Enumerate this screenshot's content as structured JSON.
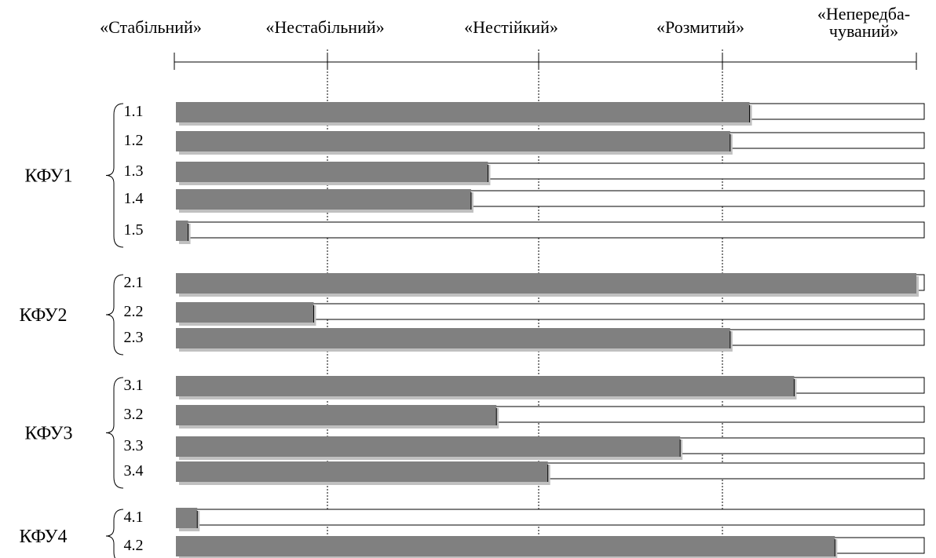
{
  "chart_data": {
    "type": "bar",
    "orientation": "horizontal",
    "stacked_with_remainder": true,
    "scale_labels": [
      [
        "«Стабільний»"
      ],
      [
        "«Нестабільний»"
      ],
      [
        "«Нестійкий»"
      ],
      [
        "«Розмитий»"
      ],
      [
        "«Непередба-",
        "чуваний»"
      ]
    ],
    "xlim": [
      0,
      4
    ],
    "grid": "vertical dotted lines at scale divisions",
    "colors": {
      "filled": "#808080",
      "shadow": "#c0c0c0",
      "remainder": "#ffffff",
      "outline": "#000000"
    },
    "groups": [
      {
        "name": "КФУ1",
        "rows": [
          {
            "label": "1.1",
            "value": 3.14
          },
          {
            "label": "1.2",
            "value": 3.04
          },
          {
            "label": "1.3",
            "value": 1.76
          },
          {
            "label": "1.4",
            "value": 1.68
          },
          {
            "label": "1.5",
            "value": 0.09
          }
        ]
      },
      {
        "name": "КФУ2",
        "rows": [
          {
            "label": "2.1",
            "value": 4.0
          },
          {
            "label": "2.2",
            "value": 0.91
          },
          {
            "label": "2.3",
            "value": 3.04
          }
        ]
      },
      {
        "name": "КФУ3",
        "rows": [
          {
            "label": "3.1",
            "value": 3.37
          },
          {
            "label": "3.2",
            "value": 1.8
          },
          {
            "label": "3.3",
            "value": 2.77
          },
          {
            "label": "3.4",
            "value": 2.05
          }
        ]
      },
      {
        "name": "КФУ4",
        "rows": [
          {
            "label": "4.1",
            "value": 0.15
          },
          {
            "label": "4.2",
            "value": 3.58
          }
        ]
      }
    ]
  }
}
